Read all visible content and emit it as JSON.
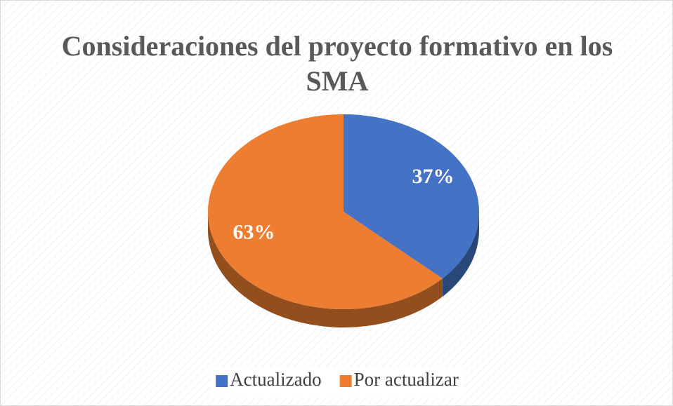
{
  "chart_data": {
    "type": "pie",
    "title": "Consideraciones del proyecto formativo en los SMA",
    "categories": [
      "Actualizado",
      "Por actualizar"
    ],
    "values": [
      37,
      63
    ],
    "value_labels": [
      "37%",
      "63%"
    ],
    "colors": [
      "#4472c4",
      "#ed7d31"
    ],
    "legend": "bottom"
  }
}
